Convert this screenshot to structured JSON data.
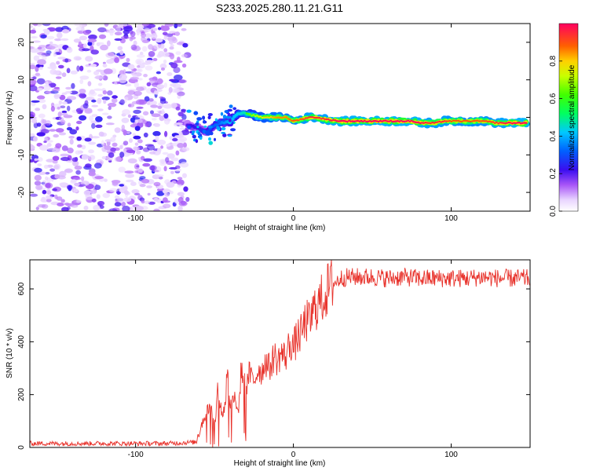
{
  "chart_data": [
    {
      "type": "heatmap",
      "title": "S233.2025.280.11.21.G11",
      "xlabel": "Height of straight line (km)",
      "ylabel": "Frequency (Hz)",
      "xlim": [
        -167,
        150
      ],
      "ylim": [
        -25,
        25
      ],
      "xticks": [
        -100,
        0,
        100
      ],
      "yticks": [
        -20,
        -10,
        0,
        10,
        20
      ],
      "noise_region_x": [
        -167,
        -67
      ],
      "signal_trace": {
        "x": [
          -67,
          -60,
          -55,
          -50,
          -45,
          -40,
          -35,
          -30,
          -25,
          -20,
          -15,
          -10,
          -5,
          0,
          5,
          10,
          15,
          20,
          30,
          40,
          50,
          60,
          70,
          75,
          80,
          85,
          90,
          95,
          100,
          110,
          120,
          130,
          140,
          148
        ],
        "freq": [
          -2,
          -3,
          -4,
          -2,
          -1.5,
          -1,
          1,
          1,
          0.5,
          0,
          0,
          0,
          0,
          -1,
          -0.5,
          0,
          0,
          -0.5,
          -1,
          -1,
          -1,
          -1,
          -1,
          -1,
          -1.5,
          -1.5,
          -1.5,
          -1,
          -1,
          -1,
          -1,
          -1.5,
          -1.5,
          -1.5
        ],
        "amplitude": [
          0.25,
          0.3,
          0.35,
          0.4,
          0.45,
          0.5,
          0.55,
          0.6,
          0.7,
          0.75,
          0.8,
          0.85,
          0.85,
          0.9,
          0.9,
          0.95,
          0.95,
          0.95,
          1,
          1,
          1,
          1,
          1,
          1,
          1,
          0.95,
          0.95,
          0.95,
          0.9,
          0.9,
          0.9,
          0.95,
          1,
          1
        ]
      },
      "colorbar": {
        "label": "Normalized spectral amplitude",
        "range": [
          0,
          1
        ],
        "ticks": [
          "0.0",
          "0.2",
          "0.4",
          "0.6",
          "0.8"
        ]
      }
    },
    {
      "type": "line",
      "title": "",
      "xlabel": "Height of straight line (km)",
      "ylabel": "SNR (10 * v/v)",
      "xlim": [
        -167,
        150
      ],
      "ylim": [
        0,
        710
      ],
      "xticks": [
        -100,
        0,
        100
      ],
      "yticks": [
        0,
        200,
        400,
        600
      ],
      "series": [
        {
          "name": "SNR",
          "color": "#e8332c",
          "x": [
            -167,
            -140,
            -120,
            -100,
            -80,
            -62,
            -58,
            -55,
            -52,
            -50,
            -48,
            -45,
            -43,
            -42,
            -40,
            -38,
            -35,
            -33,
            -30,
            -28,
            -25,
            -22,
            -20,
            -18,
            -15,
            -12,
            -10,
            -8,
            -5,
            -2,
            0,
            3,
            5,
            8,
            10,
            13,
            15,
            18,
            20,
            22,
            25,
            28,
            30,
            35,
            40,
            50,
            60,
            70,
            80,
            90,
            100,
            110,
            120,
            130,
            140,
            150
          ],
          "values": [
            15,
            15,
            15,
            15,
            15,
            20,
            90,
            140,
            150,
            60,
            220,
            120,
            170,
            300,
            160,
            200,
            130,
            300,
            220,
            280,
            250,
            300,
            280,
            330,
            300,
            350,
            320,
            360,
            340,
            400,
            380,
            420,
            430,
            480,
            470,
            520,
            540,
            560,
            580,
            600,
            620,
            630,
            640,
            645,
            645,
            645,
            640,
            645,
            640,
            640,
            640,
            640,
            645,
            640,
            640,
            640
          ]
        }
      ]
    }
  ]
}
